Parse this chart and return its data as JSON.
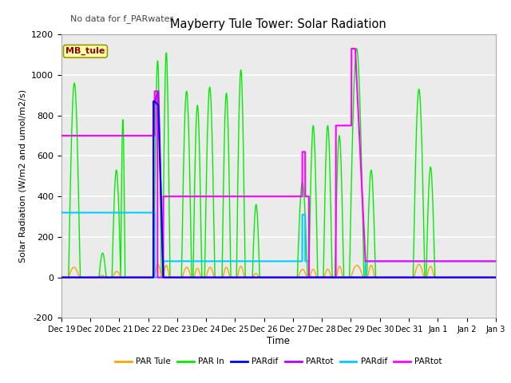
{
  "title": "Mayberry Tule Tower: Solar Radiation",
  "subtitle": "No data for f_PARwater",
  "ylabel": "Solar Radiation (W/m2 and umol/m2/s)",
  "xlabel": "Time",
  "ylim": [
    -200,
    1200
  ],
  "legend_label": "MB_tule",
  "plot_bg_color": "#ebebeb",
  "legend_entries": [
    {
      "label": "PAR Tule",
      "color": "#ffa500"
    },
    {
      "label": "PAR In",
      "color": "#00ee00"
    },
    {
      "label": "PARdif",
      "color": "#0000ff"
    },
    {
      "label": "PARtot",
      "color": "#bb00ff"
    },
    {
      "label": "PARdif",
      "color": "#00ccff"
    },
    {
      "label": "PARtot",
      "color": "#ff00ff"
    }
  ],
  "xtick_labels": [
    "Dec 19",
    "Dec 20",
    "Dec 21",
    "Dec 22",
    "Dec 23",
    "Dec 24",
    "Dec 25",
    "Dec 26",
    "Dec 27",
    "Dec 28",
    "Dec 29",
    "Dec 30",
    "Dec 31",
    "Jan 1",
    "Jan 2",
    "Jan 3"
  ],
  "ytick_vals": [
    -200,
    0,
    200,
    400,
    600,
    800,
    1000,
    1200
  ]
}
